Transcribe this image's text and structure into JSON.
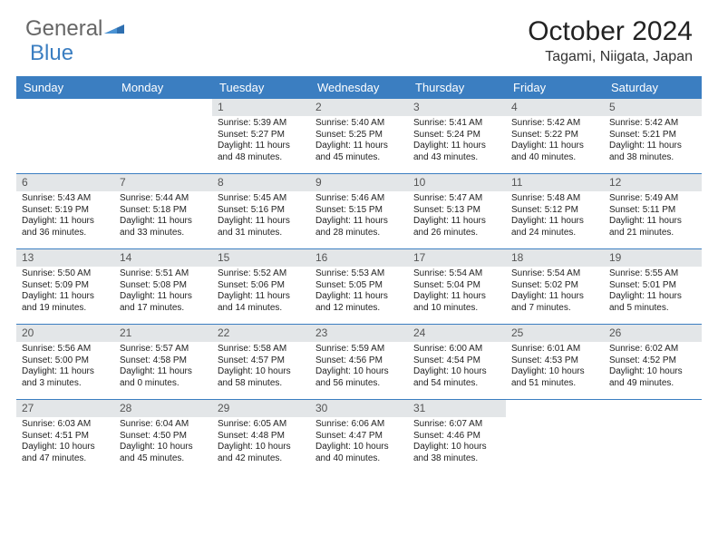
{
  "brand": {
    "part1": "General",
    "part2": "Blue"
  },
  "title": "October 2024",
  "location": "Tagami, Niigata, Japan",
  "dayHeaders": [
    "Sunday",
    "Monday",
    "Tuesday",
    "Wednesday",
    "Thursday",
    "Friday",
    "Saturday"
  ],
  "colors": {
    "headerBg": "#3b7ec1",
    "headerText": "#ffffff",
    "dayNumBg": "#e3e6e8",
    "weekBorder": "#3b7ec1",
    "pageBg": "#ffffff",
    "text": "#333333"
  },
  "layout": {
    "firstDayOffset": 2,
    "rows": 5,
    "cols": 7
  },
  "days": [
    {
      "n": 1,
      "sunrise": "5:39 AM",
      "sunset": "5:27 PM",
      "daylight": "11 hours and 48 minutes."
    },
    {
      "n": 2,
      "sunrise": "5:40 AM",
      "sunset": "5:25 PM",
      "daylight": "11 hours and 45 minutes."
    },
    {
      "n": 3,
      "sunrise": "5:41 AM",
      "sunset": "5:24 PM",
      "daylight": "11 hours and 43 minutes."
    },
    {
      "n": 4,
      "sunrise": "5:42 AM",
      "sunset": "5:22 PM",
      "daylight": "11 hours and 40 minutes."
    },
    {
      "n": 5,
      "sunrise": "5:42 AM",
      "sunset": "5:21 PM",
      "daylight": "11 hours and 38 minutes."
    },
    {
      "n": 6,
      "sunrise": "5:43 AM",
      "sunset": "5:19 PM",
      "daylight": "11 hours and 36 minutes."
    },
    {
      "n": 7,
      "sunrise": "5:44 AM",
      "sunset": "5:18 PM",
      "daylight": "11 hours and 33 minutes."
    },
    {
      "n": 8,
      "sunrise": "5:45 AM",
      "sunset": "5:16 PM",
      "daylight": "11 hours and 31 minutes."
    },
    {
      "n": 9,
      "sunrise": "5:46 AM",
      "sunset": "5:15 PM",
      "daylight": "11 hours and 28 minutes."
    },
    {
      "n": 10,
      "sunrise": "5:47 AM",
      "sunset": "5:13 PM",
      "daylight": "11 hours and 26 minutes."
    },
    {
      "n": 11,
      "sunrise": "5:48 AM",
      "sunset": "5:12 PM",
      "daylight": "11 hours and 24 minutes."
    },
    {
      "n": 12,
      "sunrise": "5:49 AM",
      "sunset": "5:11 PM",
      "daylight": "11 hours and 21 minutes."
    },
    {
      "n": 13,
      "sunrise": "5:50 AM",
      "sunset": "5:09 PM",
      "daylight": "11 hours and 19 minutes."
    },
    {
      "n": 14,
      "sunrise": "5:51 AM",
      "sunset": "5:08 PM",
      "daylight": "11 hours and 17 minutes."
    },
    {
      "n": 15,
      "sunrise": "5:52 AM",
      "sunset": "5:06 PM",
      "daylight": "11 hours and 14 minutes."
    },
    {
      "n": 16,
      "sunrise": "5:53 AM",
      "sunset": "5:05 PM",
      "daylight": "11 hours and 12 minutes."
    },
    {
      "n": 17,
      "sunrise": "5:54 AM",
      "sunset": "5:04 PM",
      "daylight": "11 hours and 10 minutes."
    },
    {
      "n": 18,
      "sunrise": "5:54 AM",
      "sunset": "5:02 PM",
      "daylight": "11 hours and 7 minutes."
    },
    {
      "n": 19,
      "sunrise": "5:55 AM",
      "sunset": "5:01 PM",
      "daylight": "11 hours and 5 minutes."
    },
    {
      "n": 20,
      "sunrise": "5:56 AM",
      "sunset": "5:00 PM",
      "daylight": "11 hours and 3 minutes."
    },
    {
      "n": 21,
      "sunrise": "5:57 AM",
      "sunset": "4:58 PM",
      "daylight": "11 hours and 0 minutes."
    },
    {
      "n": 22,
      "sunrise": "5:58 AM",
      "sunset": "4:57 PM",
      "daylight": "10 hours and 58 minutes."
    },
    {
      "n": 23,
      "sunrise": "5:59 AM",
      "sunset": "4:56 PM",
      "daylight": "10 hours and 56 minutes."
    },
    {
      "n": 24,
      "sunrise": "6:00 AM",
      "sunset": "4:54 PM",
      "daylight": "10 hours and 54 minutes."
    },
    {
      "n": 25,
      "sunrise": "6:01 AM",
      "sunset": "4:53 PM",
      "daylight": "10 hours and 51 minutes."
    },
    {
      "n": 26,
      "sunrise": "6:02 AM",
      "sunset": "4:52 PM",
      "daylight": "10 hours and 49 minutes."
    },
    {
      "n": 27,
      "sunrise": "6:03 AM",
      "sunset": "4:51 PM",
      "daylight": "10 hours and 47 minutes."
    },
    {
      "n": 28,
      "sunrise": "6:04 AM",
      "sunset": "4:50 PM",
      "daylight": "10 hours and 45 minutes."
    },
    {
      "n": 29,
      "sunrise": "6:05 AM",
      "sunset": "4:48 PM",
      "daylight": "10 hours and 42 minutes."
    },
    {
      "n": 30,
      "sunrise": "6:06 AM",
      "sunset": "4:47 PM",
      "daylight": "10 hours and 40 minutes."
    },
    {
      "n": 31,
      "sunrise": "6:07 AM",
      "sunset": "4:46 PM",
      "daylight": "10 hours and 38 minutes."
    }
  ],
  "labels": {
    "sunrise": "Sunrise: ",
    "sunset": "Sunset: ",
    "daylight": "Daylight: "
  }
}
